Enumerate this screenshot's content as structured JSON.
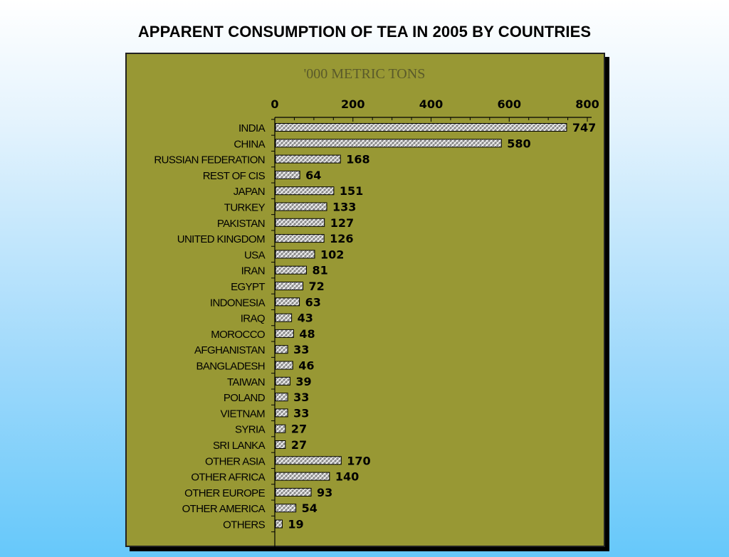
{
  "title": "APPARENT CONSUMPTION OF TEA IN 2005 BY COUNTRIES",
  "colors": {
    "panel": "#989834",
    "bar_fill": "#8a8a8a",
    "bar_hatch": "#ffffff"
  },
  "chart_data": {
    "type": "bar",
    "orientation": "horizontal",
    "title": "APPARENT CONSUMPTION OF TEA IN 2005 BY COUNTRIES",
    "unit_label": "'000 METRIC TONS",
    "xlim": [
      0,
      800
    ],
    "x_ticks": [
      "0",
      "200",
      "400",
      "600",
      "800"
    ],
    "x_axis_position": "top",
    "grid": false,
    "categories": [
      "INDIA",
      "CHINA",
      "RUSSIAN FEDERATION",
      "REST OF CIS",
      "JAPAN",
      "TURKEY",
      "PAKISTAN",
      "UNITED KINGDOM",
      "USA",
      "IRAN",
      "EGYPT",
      "INDONESIA",
      "IRAQ",
      "MOROCCO",
      "AFGHANISTAN",
      "BANGLADESH",
      "TAIWAN",
      "POLAND",
      "VIETNAM",
      "SYRIA",
      "SRI LANKA",
      "OTHER ASIA",
      "OTHER AFRICA",
      "OTHER EUROPE",
      "OTHER AMERICA",
      "OTHERS"
    ],
    "values": [
      747,
      580,
      168,
      64,
      151,
      133,
      127,
      126,
      102,
      81,
      72,
      63,
      43,
      48,
      33,
      46,
      39,
      33,
      33,
      27,
      27,
      170,
      140,
      93,
      54,
      19
    ],
    "data_labels": [
      "747",
      "580",
      "168",
      "64",
      "151",
      "133",
      "127",
      "126",
      "102",
      "81",
      "72",
      "63",
      "43",
      "48",
      "33",
      "46",
      "39",
      "33",
      "33",
      "27",
      "27",
      "170",
      "140",
      "93",
      "54",
      "19"
    ]
  }
}
